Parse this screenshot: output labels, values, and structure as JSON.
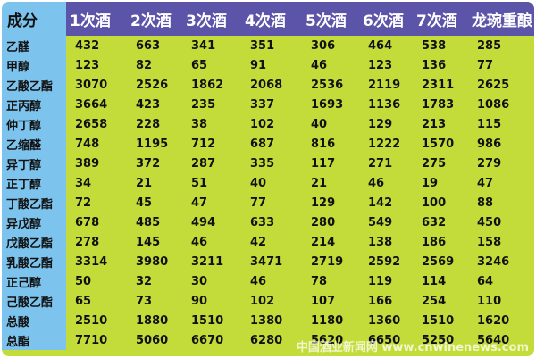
{
  "table": {
    "header": [
      "成分",
      "1次酒",
      "2次酒",
      "3次酒",
      "4次酒",
      "5次酒",
      "6次酒",
      "7次酒",
      "龙琬重酿"
    ],
    "rows": [
      [
        "乙醛",
        432,
        663,
        341,
        351,
        306,
        464,
        538,
        285
      ],
      [
        "甲醇",
        123,
        82,
        65,
        91,
        46,
        123,
        136,
        77
      ],
      [
        "乙酸乙酯",
        3070,
        2526,
        1862,
        2068,
        2536,
        2119,
        2311,
        2625
      ],
      [
        "正丙醇",
        3664,
        423,
        235,
        337,
        1693,
        1136,
        1783,
        1086
      ],
      [
        "仲丁醇",
        2658,
        228,
        38,
        102,
        40,
        129,
        213,
        115
      ],
      [
        "乙缩醛",
        748,
        1195,
        712,
        687,
        816,
        1222,
        1570,
        986
      ],
      [
        "异丁醇",
        389,
        372,
        287,
        335,
        117,
        271,
        275,
        279
      ],
      [
        "正丁醇",
        34,
        21,
        51,
        40,
        21,
        46,
        19,
        47
      ],
      [
        "丁酸乙酯",
        72,
        45,
        47,
        77,
        129,
        142,
        100,
        88
      ],
      [
        "异戊醇",
        678,
        485,
        494,
        633,
        280,
        549,
        632,
        450
      ],
      [
        "戊酸乙酯",
        278,
        145,
        46,
        42,
        214,
        138,
        186,
        158
      ],
      [
        "乳酸乙酯",
        3314,
        3980,
        3211,
        3471,
        2719,
        2592,
        2569,
        3246
      ],
      [
        "正己醇",
        50,
        32,
        30,
        46,
        78,
        119,
        114,
        64
      ],
      [
        "己酸乙酯",
        65,
        73,
        90,
        102,
        107,
        166,
        254,
        110
      ],
      [
        "总酸",
        2510,
        1880,
        1510,
        1380,
        1180,
        1360,
        1510,
        1620
      ],
      [
        "总酯",
        7710,
        5060,
        6670,
        6280,
        5620,
        6650,
        5250,
        5640
      ]
    ]
  },
  "watermark": "中国酒业新闻网 www.cnwinenews.com"
}
